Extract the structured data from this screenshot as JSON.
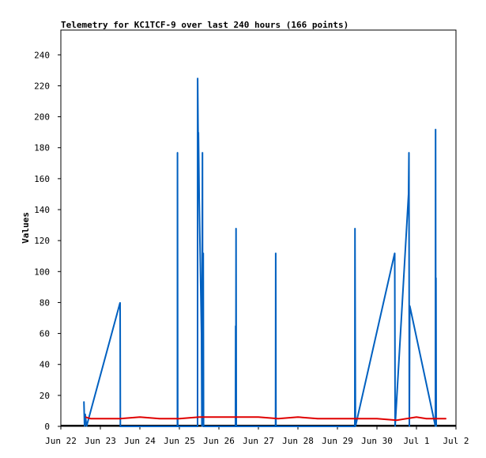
{
  "chart_data": {
    "type": "line",
    "title": "Telemetry for KC1TCF-9 over last 240 hours (166 points)",
    "xlabel": "",
    "ylabel": "Values",
    "x_ticks": [
      "Jun 22",
      "Jun 23",
      "Jun 24",
      "Jun 25",
      "Jun 26",
      "Jun 27",
      "Jun 28",
      "Jun 29",
      "Jun 30",
      "Jul 1",
      "Jul 2"
    ],
    "y_ticks": [
      "0",
      "20",
      "40",
      "60",
      "80",
      "100",
      "120",
      "140",
      "160",
      "180",
      "200",
      "220",
      "240"
    ],
    "xlim": [
      "Jun 22 00:00",
      "Jul 2 00:00"
    ],
    "ylim": [
      0,
      256
    ],
    "grid": false,
    "series": [
      {
        "color": "#0060c0",
        "points": [
          [
            "Jun 22 14:00",
            16
          ],
          [
            "Jun 22 14:24",
            0
          ],
          [
            "Jun 22 14:48",
            8
          ],
          [
            "Jun 22 15:36",
            0
          ],
          [
            "Jun 23 12:00",
            80
          ],
          [
            "Jun 23 12:10",
            0
          ],
          [
            "Jun 24 22:48",
            0
          ],
          [
            "Jun 24 22:52",
            177
          ],
          [
            "Jun 24 23:00",
            0
          ],
          [
            "Jun 25 11:02",
            0
          ],
          [
            "Jun 25 11:06",
            225
          ],
          [
            "Jun 25 11:31",
            170
          ],
          [
            "Jun 25 11:34",
            190
          ],
          [
            "Jun 25 12:00",
            150
          ],
          [
            "Jun 25 13:26",
            60
          ],
          [
            "Jun 25 13:40",
            0
          ],
          [
            "Jun 25 14:00",
            177
          ],
          [
            "Jun 25 14:10",
            0
          ],
          [
            "Jun 25 14:30",
            112
          ],
          [
            "Jun 25 14:40",
            0
          ],
          [
            "Jun 26 10:05",
            0
          ],
          [
            "Jun 26 10:10",
            65
          ],
          [
            "Jun 26 10:19",
            0
          ],
          [
            "Jun 26 10:24",
            128
          ],
          [
            "Jun 26 10:34",
            0
          ],
          [
            "Jun 27 10:26",
            0
          ],
          [
            "Jun 27 10:31",
            112
          ],
          [
            "Jun 27 10:40",
            0
          ],
          [
            "Jun 29 10:34",
            0
          ],
          [
            "Jun 29 10:38",
            128
          ],
          [
            "Jun 29 10:58",
            0
          ],
          [
            "Jun 30 10:48",
            112
          ],
          [
            "Jun 30 11:02",
            0
          ],
          [
            "Jun 30 19:12",
            150
          ],
          [
            "Jun 30 19:26",
            177
          ],
          [
            "Jun 30 19:40",
            0
          ],
          [
            "Jun 30 19:55",
            78
          ],
          [
            "Jul 1 11:31",
            0
          ],
          [
            "Jul 1 11:36",
            192
          ],
          [
            "Jul 1 11:46",
            0
          ],
          [
            "Jul 1 11:50",
            96
          ],
          [
            "Jul 1 12:00",
            0
          ]
        ]
      },
      {
        "color": "#e00000",
        "points": [
          [
            "Jun 22 15:00",
            6
          ],
          [
            "Jun 22 18:00",
            5
          ],
          [
            "Jun 23 12:00",
            5
          ],
          [
            "Jun 24 00:00",
            6
          ],
          [
            "Jun 24 12:00",
            5
          ],
          [
            "Jun 25 00:00",
            5
          ],
          [
            "Jun 25 12:00",
            6
          ],
          [
            "Jun 25 18:00",
            6
          ],
          [
            "Jun 26 12:00",
            6
          ],
          [
            "Jun 27 00:00",
            6
          ],
          [
            "Jun 27 12:00",
            5
          ],
          [
            "Jun 28 00:00",
            6
          ],
          [
            "Jun 28 12:00",
            5
          ],
          [
            "Jun 29 00:00",
            5
          ],
          [
            "Jun 29 12:00",
            5
          ],
          [
            "Jun 30 00:00",
            5
          ],
          [
            "Jun 30 12:00",
            4
          ],
          [
            "Jul 1 00:00",
            6
          ],
          [
            "Jul 1 06:00",
            5
          ],
          [
            "Jul 1 12:00",
            5
          ],
          [
            "Jul 1 18:00",
            5
          ]
        ]
      }
    ]
  }
}
